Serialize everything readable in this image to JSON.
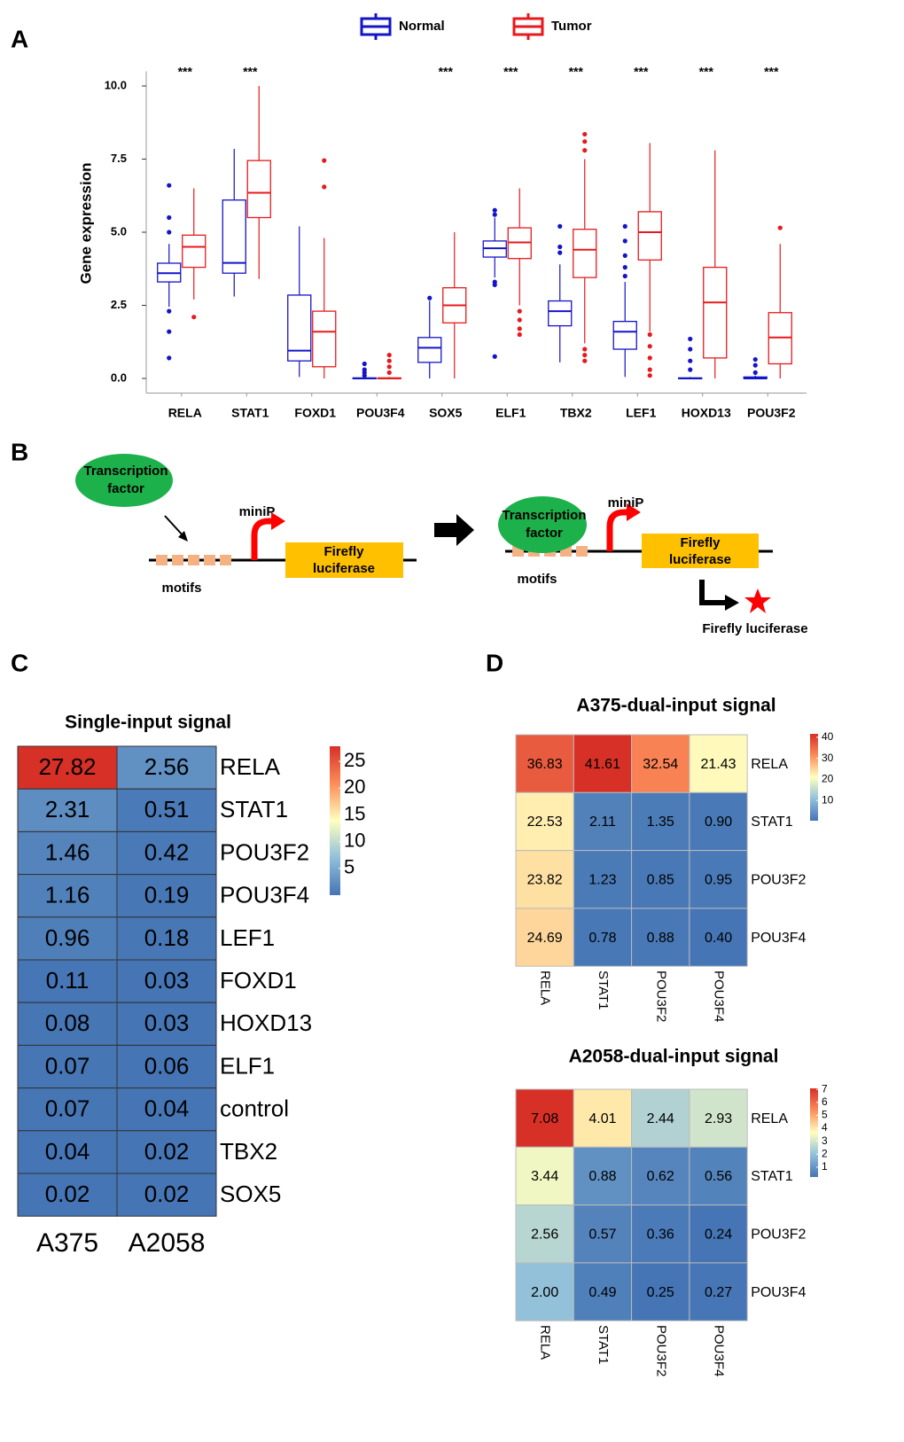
{
  "panels": [
    "A",
    "B",
    "C",
    "D"
  ],
  "diagram": {
    "left": {
      "factor": [
        "Transcription",
        "factor"
      ],
      "promoter": "miniP",
      "motifs": "motifs",
      "reporter": [
        "Firefly",
        "luciferase"
      ]
    },
    "right": {
      "factor": [
        "Transcription",
        "factor"
      ],
      "promoter": "miniP",
      "motifs": "motifs",
      "reporter": [
        "Firefly",
        "luciferase"
      ],
      "product": "Firefly luciferase"
    }
  },
  "chart_data": [
    {
      "type": "box",
      "y_label": "Gene expression",
      "categories": [
        "RELA",
        "STAT1",
        "FOXD1",
        "POU3F4",
        "SOX5",
        "ELF1",
        "TBX2",
        "LEF1",
        "HOXD13",
        "POU3F2"
      ],
      "significance": [
        "***",
        "***",
        null,
        null,
        "***",
        "***",
        "***",
        "***",
        "***",
        "***"
      ],
      "ylim": [
        -0.5,
        10.5
      ],
      "yticks": [
        {
          "value": 0,
          "label": "0.0"
        },
        2.5,
        {
          "value": 5,
          "label": "5.0"
        },
        7.5,
        {
          "value": 10,
          "label": "10.0"
        }
      ],
      "series": [
        {
          "name": "Normal",
          "color": "#1414c8",
          "boxes": [
            {
              "min": 2.45,
              "q1": 3.3,
              "median": 3.6,
              "q3": 3.94,
              "max": 4.6,
              "outliers": [
                6.6,
                5.5,
                5.0,
                2.3,
                1.6,
                0.7
              ]
            },
            {
              "min": 2.8,
              "q1": 3.6,
              "median": 3.95,
              "q3": 6.1,
              "max": 7.85,
              "outliers": []
            },
            {
              "min": 0.05,
              "q1": 0.6,
              "median": 0.95,
              "q3": 2.85,
              "max": 5.2,
              "outliers": []
            },
            {
              "min": 0,
              "q1": 0,
              "median": 0,
              "q3": 0.02,
              "max": 0.05,
              "outliers": [
                0.5,
                0.3,
                0.2,
                0.1
              ]
            },
            {
              "min": 0,
              "q1": 0.55,
              "median": 1.05,
              "q3": 1.4,
              "max": 2.65,
              "outliers": [
                2.75
              ]
            },
            {
              "min": 3.45,
              "q1": 4.15,
              "median": 4.45,
              "q3": 4.7,
              "max": 5.5,
              "outliers": [
                5.75,
                5.6,
                3.3,
                3.2,
                0.75
              ]
            },
            {
              "min": 0.55,
              "q1": 1.8,
              "median": 2.3,
              "q3": 2.65,
              "max": 3.9,
              "outliers": [
                5.2,
                4.5,
                4.3
              ]
            },
            {
              "min": 0.05,
              "q1": 1.0,
              "median": 1.6,
              "q3": 1.95,
              "max": 3.3,
              "outliers": [
                5.2,
                4.7,
                4.2,
                3.8,
                3.5
              ]
            },
            {
              "min": 0,
              "q1": 0,
              "median": 0,
              "q3": 0.02,
              "max": 0.05,
              "outliers": [
                1.35,
                1.0,
                0.6,
                0.3
              ]
            },
            {
              "min": 0,
              "q1": 0,
              "median": 0,
              "q3": 0.05,
              "max": 0.1,
              "outliers": [
                0.65,
                0.45,
                0.2
              ]
            }
          ]
        },
        {
          "name": "Tumor",
          "color": "#e8191c",
          "boxes": [
            {
              "min": 2.7,
              "q1": 3.8,
              "median": 4.5,
              "q3": 4.9,
              "max": 6.5,
              "outliers": [
                2.1
              ]
            },
            {
              "min": 3.4,
              "q1": 5.5,
              "median": 6.35,
              "q3": 7.45,
              "max": 10,
              "outliers": []
            },
            {
              "min": 0,
              "q1": 0.4,
              "median": 1.6,
              "q3": 2.3,
              "max": 4.8,
              "outliers": [
                7.45,
                6.55
              ]
            },
            {
              "min": 0,
              "q1": 0,
              "median": 0,
              "q3": 0.02,
              "max": 0.05,
              "outliers": [
                0.8,
                0.6,
                0.4,
                0.2
              ]
            },
            {
              "min": 0,
              "q1": 1.9,
              "median": 2.5,
              "q3": 3.1,
              "max": 5.0,
              "outliers": []
            },
            {
              "min": 2.5,
              "q1": 4.1,
              "median": 4.65,
              "q3": 5.15,
              "max": 6.5,
              "outliers": [
                2.3,
                2.0,
                1.7,
                1.5
              ]
            },
            {
              "min": 1.2,
              "q1": 3.45,
              "median": 4.4,
              "q3": 5.1,
              "max": 7.5,
              "outliers": [
                8.35,
                8.1,
                7.8,
                1.0,
                0.8,
                0.6
              ]
            },
            {
              "min": 1.6,
              "q1": 4.05,
              "median": 5.0,
              "q3": 5.7,
              "max": 8.05,
              "outliers": [
                1.5,
                1.1,
                0.7,
                0.3,
                0.1
              ]
            },
            {
              "min": 0,
              "q1": 0.7,
              "median": 2.6,
              "q3": 3.8,
              "max": 7.8,
              "outliers": []
            },
            {
              "min": 0,
              "q1": 0.5,
              "median": 1.4,
              "q3": 2.25,
              "max": 4.6,
              "outliers": [
                5.15
              ]
            }
          ]
        }
      ]
    },
    {
      "type": "heatmap",
      "title": "Single-input signal",
      "rows": [
        "RELA",
        "STAT1",
        "POU3F2",
        "POU3F4",
        "LEF1",
        "FOXD1",
        "HOXD13",
        "ELF1",
        "control",
        "TBX2",
        "SOX5"
      ],
      "columns": [
        "A375",
        "A2058"
      ],
      "values": [
        [
          27.82,
          2.56
        ],
        [
          2.31,
          0.51
        ],
        [
          1.46,
          0.42
        ],
        [
          1.16,
          0.19
        ],
        [
          0.96,
          0.18
        ],
        [
          0.11,
          0.03
        ],
        [
          0.08,
          0.03
        ],
        [
          0.07,
          0.06
        ],
        [
          0.07,
          0.04
        ],
        [
          0.04,
          0.02
        ],
        [
          0.02,
          0.02
        ]
      ],
      "value_labels": [
        [
          "27.82",
          "2.56"
        ],
        [
          "2.31",
          "0.51"
        ],
        [
          "1.46",
          "0.42"
        ],
        [
          "1.16",
          "0.19"
        ],
        [
          "0.96",
          "0.18"
        ],
        [
          "0.11",
          "0.03"
        ],
        [
          "0.08",
          "0.03"
        ],
        [
          "0.07",
          "0.06"
        ],
        [
          "0.07",
          "0.04"
        ],
        [
          "0.04",
          "0.02"
        ],
        [
          "0.02",
          "0.02"
        ]
      ],
      "zlim": [
        0.02,
        27.82
      ],
      "zticks": [
        5,
        10,
        15,
        20,
        25
      ],
      "colorscale": [
        "#4575b4",
        "#91bfdb",
        "#ffffbf",
        "#fc8d59",
        "#d73027"
      ]
    },
    {
      "type": "heatmap",
      "title": "A375-dual-input signal",
      "rows": [
        "RELA",
        "STAT1",
        "POU3F2",
        "POU3F4"
      ],
      "columns": [
        "RELA",
        "STAT1",
        "POU3F2",
        "POU3F4"
      ],
      "values": [
        [
          36.83,
          41.61,
          32.54,
          21.43
        ],
        [
          22.53,
          2.11,
          1.35,
          0.9
        ],
        [
          23.82,
          1.23,
          0.85,
          0.95
        ],
        [
          24.69,
          0.78,
          0.88,
          0.4
        ]
      ],
      "value_labels": [
        [
          "36.83",
          "41.61",
          "32.54",
          "21.43"
        ],
        [
          "22.53",
          "2.11",
          "1.35",
          "0.90"
        ],
        [
          "23.82",
          "1.23",
          "0.85",
          "0.95"
        ],
        [
          "24.69",
          "0.78",
          "0.88",
          "0.40"
        ]
      ],
      "zlim": [
        0.4,
        41.61
      ],
      "zticks": [
        10,
        20,
        30,
        40
      ],
      "colorscale": [
        "#4575b4",
        "#91bfdb",
        "#ffffbf",
        "#fc8d59",
        "#d73027"
      ]
    },
    {
      "type": "heatmap",
      "title": "A2058-dual-input signal",
      "rows": [
        "RELA",
        "STAT1",
        "POU3F2",
        "POU3F4"
      ],
      "columns": [
        "RELA",
        "STAT1",
        "POU3F2",
        "POU3F4"
      ],
      "values": [
        [
          7.08,
          4.01,
          2.44,
          2.93
        ],
        [
          3.44,
          0.88,
          0.62,
          0.56
        ],
        [
          2.56,
          0.57,
          0.36,
          0.24
        ],
        [
          2.0,
          0.49,
          0.25,
          0.27
        ]
      ],
      "value_labels": [
        [
          "7.08",
          "4.01",
          "2.44",
          "2.93"
        ],
        [
          "3.44",
          "0.88",
          "0.62",
          "0.56"
        ],
        [
          "2.56",
          "0.57",
          "0.36",
          "0.24"
        ],
        [
          "2.00",
          "0.49",
          "0.25",
          "0.27"
        ]
      ],
      "zlim": [
        0.24,
        7.08
      ],
      "zticks": [
        1,
        2,
        3,
        4,
        5,
        6,
        7
      ],
      "colorscale": [
        "#4575b4",
        "#91bfdb",
        "#ffffbf",
        "#fc8d59",
        "#d73027"
      ]
    }
  ]
}
